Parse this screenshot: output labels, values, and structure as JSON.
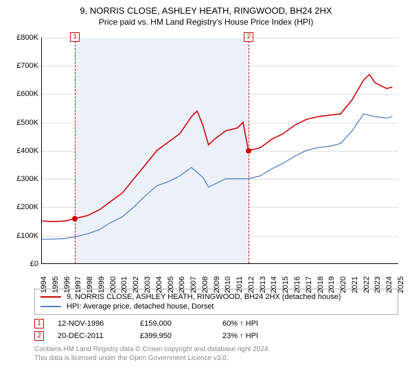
{
  "title": "9, NORRIS CLOSE, ASHLEY HEATH, RINGWOOD, BH24 2HX",
  "subtitle": "Price paid vs. HM Land Registry's House Price Index (HPI)",
  "chart": {
    "type": "line",
    "background_color": "#ffffff",
    "grid_color": "#dddddd",
    "shade_color": "#ecf1f9",
    "xlim": [
      1994,
      2025
    ],
    "ylim": [
      0,
      800000
    ],
    "ytick_step": 100000,
    "yticks": [
      "£0",
      "£100K",
      "£200K",
      "£300K",
      "£400K",
      "£500K",
      "£600K",
      "£700K",
      "£800K"
    ],
    "xticks": [
      "1994",
      "1995",
      "1996",
      "1997",
      "1998",
      "1999",
      "2000",
      "2001",
      "2002",
      "2003",
      "2004",
      "2005",
      "2006",
      "2007",
      "2008",
      "2009",
      "2010",
      "2011",
      "2012",
      "2013",
      "2014",
      "2015",
      "2016",
      "2017",
      "2018",
      "2019",
      "2020",
      "2021",
      "2022",
      "2023",
      "2024",
      "2025"
    ],
    "shade_start": 1996.87,
    "shade_end": 2011.97,
    "series": [
      {
        "name": "price_paid",
        "color": "#cc0000",
        "width": 1.6,
        "points": [
          [
            1994,
            150000
          ],
          [
            1995,
            148000
          ],
          [
            1996,
            150000
          ],
          [
            1996.87,
            159000
          ],
          [
            1997,
            160000
          ],
          [
            1998,
            170000
          ],
          [
            1999,
            190000
          ],
          [
            2000,
            220000
          ],
          [
            2001,
            250000
          ],
          [
            2002,
            300000
          ],
          [
            2003,
            350000
          ],
          [
            2004,
            400000
          ],
          [
            2005,
            430000
          ],
          [
            2006,
            460000
          ],
          [
            2007,
            520000
          ],
          [
            2007.5,
            540000
          ],
          [
            2008,
            490000
          ],
          [
            2008.5,
            420000
          ],
          [
            2009,
            440000
          ],
          [
            2010,
            470000
          ],
          [
            2011,
            480000
          ],
          [
            2011.5,
            500000
          ],
          [
            2011.97,
            399950
          ],
          [
            2012,
            400000
          ],
          [
            2013,
            410000
          ],
          [
            2014,
            440000
          ],
          [
            2015,
            460000
          ],
          [
            2016,
            490000
          ],
          [
            2017,
            510000
          ],
          [
            2018,
            520000
          ],
          [
            2019,
            525000
          ],
          [
            2020,
            530000
          ],
          [
            2021,
            580000
          ],
          [
            2022,
            650000
          ],
          [
            2022.5,
            670000
          ],
          [
            2023,
            640000
          ],
          [
            2024,
            620000
          ],
          [
            2024.5,
            625000
          ]
        ]
      },
      {
        "name": "hpi",
        "color": "#4a7fc4",
        "width": 1.3,
        "points": [
          [
            1994,
            85000
          ],
          [
            1995,
            86000
          ],
          [
            1996,
            88000
          ],
          [
            1997,
            95000
          ],
          [
            1998,
            105000
          ],
          [
            1999,
            120000
          ],
          [
            2000,
            145000
          ],
          [
            2001,
            165000
          ],
          [
            2002,
            200000
          ],
          [
            2003,
            240000
          ],
          [
            2004,
            275000
          ],
          [
            2005,
            290000
          ],
          [
            2006,
            310000
          ],
          [
            2007,
            340000
          ],
          [
            2008,
            305000
          ],
          [
            2008.5,
            270000
          ],
          [
            2009,
            280000
          ],
          [
            2010,
            300000
          ],
          [
            2011,
            300000
          ],
          [
            2012,
            300000
          ],
          [
            2013,
            310000
          ],
          [
            2014,
            335000
          ],
          [
            2015,
            355000
          ],
          [
            2016,
            380000
          ],
          [
            2017,
            400000
          ],
          [
            2018,
            410000
          ],
          [
            2019,
            415000
          ],
          [
            2020,
            425000
          ],
          [
            2021,
            470000
          ],
          [
            2022,
            530000
          ],
          [
            2023,
            520000
          ],
          [
            2024,
            515000
          ],
          [
            2024.5,
            520000
          ]
        ]
      }
    ],
    "markers": [
      {
        "n": "1",
        "x": 1996.87,
        "y": 159000,
        "color": "#cc0000"
      },
      {
        "n": "2",
        "x": 2011.97,
        "y": 399950,
        "color": "#cc0000"
      }
    ]
  },
  "legend": {
    "item1_color": "#cc0000",
    "item1_label": "9, NORRIS CLOSE, ASHLEY HEATH, RINGWOOD, BH24 2HX (detached house)",
    "item2_color": "#4a7fc4",
    "item2_label": "HPI: Average price, detached house, Dorset"
  },
  "sales": [
    {
      "n": "1",
      "date": "12-NOV-1996",
      "price": "£159,000",
      "delta": "60% ↑ HPI",
      "color": "#cc0000"
    },
    {
      "n": "2",
      "date": "20-DEC-2011",
      "price": "£399,950",
      "delta": "23% ↑ HPI",
      "color": "#cc0000"
    }
  ],
  "footer_line1": "Contains HM Land Registry data © Crown copyright and database right 2024.",
  "footer_line2": "This data is licensed under the Open Government Licence v3.0."
}
